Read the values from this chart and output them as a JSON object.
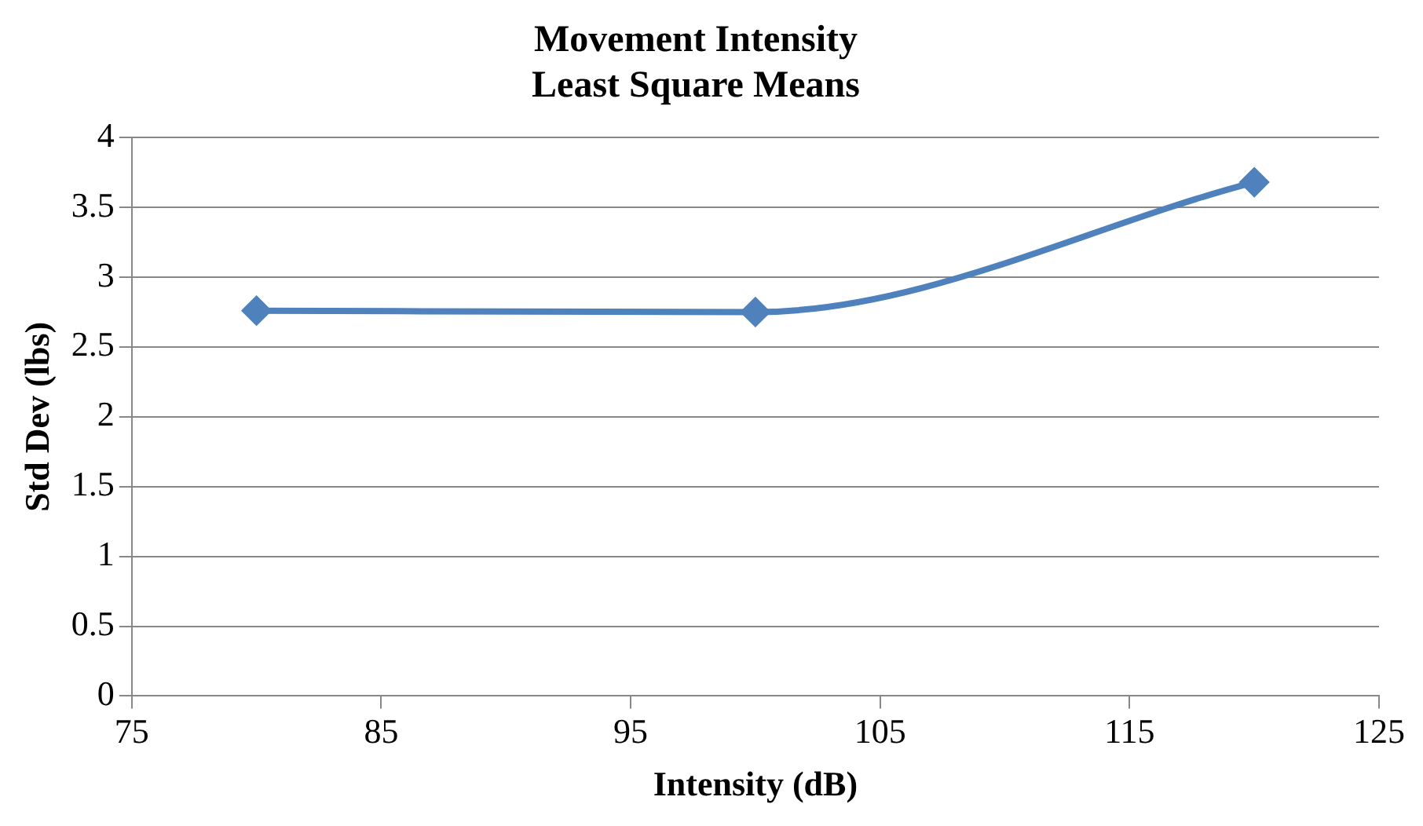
{
  "chart_data": {
    "type": "line",
    "title": [
      "Movement Intensity",
      "Least Square Means"
    ],
    "xlabel": "Intensity (dB)",
    "ylabel": "Std Dev (lbs)",
    "x": [
      80,
      100,
      120
    ],
    "series": [
      {
        "color": "#4f81bd",
        "values": [
          2.76,
          2.75,
          3.68
        ]
      }
    ],
    "xlim": [
      75,
      125
    ],
    "xticks": [
      75,
      85,
      95,
      105,
      115,
      125
    ],
    "ylim": [
      0,
      4
    ],
    "yticks": [
      0,
      0.5,
      1,
      1.5,
      2,
      2.5,
      3,
      3.5,
      4
    ],
    "grid": "y",
    "legend": false,
    "marker": "diamond",
    "line_style": "solid"
  }
}
